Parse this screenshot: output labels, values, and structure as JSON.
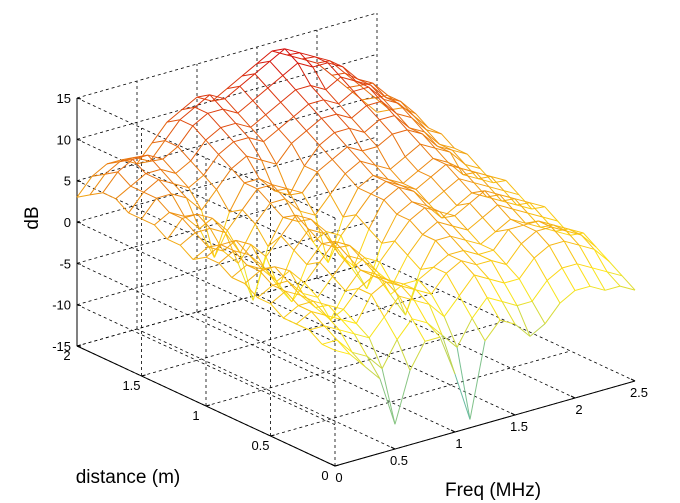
{
  "chart_data": {
    "type": "surface",
    "title": "",
    "xlabel": "Freq (MHz)",
    "ylabel": "distance (m)",
    "zlabel": "dB",
    "x_ticks": [
      "0",
      "0.5",
      "1",
      "1.5",
      "2",
      "2.5"
    ],
    "y_ticks": [
      "0",
      "0.5",
      "1",
      "1.5",
      "2"
    ],
    "z_ticks": [
      "-15",
      "-10",
      "-5",
      "0",
      "5",
      "10",
      "15"
    ],
    "xlim": [
      0,
      2.5
    ],
    "ylim": [
      0,
      2
    ],
    "zlim": [
      -15,
      15
    ],
    "grid": true,
    "colormap": "autumn-to-cool (red high, yellow mid, cyan low)",
    "x": [
      0,
      0.125,
      0.25,
      0.375,
      0.5,
      0.625,
      0.75,
      0.875,
      1.0,
      1.125,
      1.25,
      1.375,
      1.5,
      1.625,
      1.75,
      1.875,
      2.0,
      2.125,
      2.25,
      2.375,
      2.5
    ],
    "y": [
      0,
      0.1,
      0.2,
      0.3,
      0.4,
      0.5,
      0.6,
      0.7,
      0.8,
      0.9,
      1.0,
      1.1,
      1.2,
      1.3,
      1.4,
      1.5,
      1.6,
      1.7,
      1.8,
      1.9,
      2.0
    ],
    "z": [
      [
        -1,
        -2,
        -4,
        -6,
        -12,
        -6,
        -3,
        -3,
        -8,
        -14,
        -5,
        -3,
        -4,
        -6,
        -5,
        -3,
        -2,
        -2,
        -3,
        -3,
        -4
      ],
      [
        -1,
        -1,
        -3,
        -4,
        -6,
        -3,
        -1,
        -2,
        -4,
        -6,
        -3,
        -1,
        -2,
        -3,
        -3,
        -1,
        0,
        0,
        -1,
        -2,
        -3
      ],
      [
        0,
        0,
        -1,
        -2,
        -3,
        -1,
        1,
        0,
        -1,
        -3,
        -1,
        1,
        0,
        -1,
        -1,
        1,
        2,
        2,
        1,
        0,
        -2
      ],
      [
        0,
        1,
        0,
        -1,
        -2,
        1,
        2,
        1,
        0,
        -1,
        1,
        2,
        1,
        1,
        0,
        2,
        3,
        3,
        2,
        1,
        -1
      ],
      [
        0,
        1,
        1,
        0,
        -1,
        1,
        2,
        1,
        0,
        0,
        1,
        2,
        2,
        1,
        1,
        3,
        3,
        3,
        2,
        1,
        0
      ],
      [
        1,
        2,
        1,
        -1,
        -3,
        0,
        2,
        1,
        -2,
        -5,
        0,
        3,
        3,
        2,
        1,
        2,
        3,
        2,
        1,
        0,
        -1
      ],
      [
        1,
        2,
        2,
        0,
        -1,
        1,
        3,
        2,
        0,
        -2,
        1,
        3,
        4,
        3,
        2,
        3,
        4,
        3,
        2,
        1,
        0
      ],
      [
        2,
        3,
        3,
        2,
        0,
        2,
        4,
        3,
        1,
        0,
        2,
        4,
        5,
        4,
        3,
        4,
        5,
        4,
        3,
        2,
        1
      ],
      [
        2,
        3,
        2,
        0,
        -3,
        1,
        3,
        2,
        -1,
        -4,
        1,
        4,
        5,
        4,
        2,
        3,
        4,
        3,
        2,
        1,
        0
      ],
      [
        3,
        4,
        3,
        1,
        -2,
        2,
        4,
        3,
        0,
        -2,
        2,
        5,
        6,
        5,
        3,
        4,
        5,
        4,
        3,
        2,
        1
      ],
      [
        3,
        4,
        4,
        3,
        1,
        3,
        5,
        4,
        2,
        1,
        3,
        5,
        6,
        5,
        4,
        5,
        6,
        5,
        4,
        3,
        2
      ],
      [
        2,
        3,
        2,
        0,
        -5,
        1,
        4,
        3,
        0,
        -3,
        2,
        5,
        6,
        5,
        4,
        5,
        6,
        5,
        3,
        2,
        1
      ],
      [
        3,
        4,
        4,
        3,
        0,
        3,
        5,
        5,
        3,
        2,
        4,
        6,
        7,
        6,
        5,
        6,
        7,
        6,
        5,
        3,
        2
      ],
      [
        3,
        5,
        5,
        4,
        2,
        4,
        6,
        6,
        5,
        4,
        6,
        7,
        8,
        7,
        7,
        8,
        8,
        7,
        5,
        4,
        3
      ],
      [
        4,
        5,
        4,
        2,
        -2,
        3,
        6,
        6,
        4,
        3,
        6,
        8,
        9,
        9,
        8,
        9,
        9,
        7,
        6,
        4,
        3
      ],
      [
        4,
        6,
        6,
        5,
        3,
        5,
        7,
        8,
        7,
        6,
        8,
        9,
        10,
        10,
        9,
        10,
        10,
        8,
        7,
        5,
        4
      ],
      [
        4,
        6,
        7,
        6,
        5,
        6,
        8,
        9,
        9,
        8,
        9,
        10,
        11,
        11,
        10,
        11,
        11,
        9,
        8,
        6,
        4
      ],
      [
        5,
        6,
        7,
        7,
        6,
        7,
        9,
        10,
        10,
        9,
        10,
        11,
        12,
        12,
        11,
        12,
        11,
        10,
        8,
        7,
        5
      ],
      [
        5,
        7,
        8,
        8,
        7,
        8,
        10,
        11,
        11,
        10,
        11,
        12,
        13,
        14,
        13,
        13,
        12,
        10,
        9,
        7,
        5
      ],
      [
        4,
        6,
        7,
        7,
        6,
        8,
        10,
        11,
        12,
        11,
        12,
        13,
        14,
        15,
        14,
        13,
        12,
        10,
        8,
        6,
        4
      ],
      [
        3,
        5,
        6,
        6,
        5,
        7,
        9,
        10,
        11,
        10,
        11,
        12,
        13,
        14,
        13,
        12,
        11,
        9,
        7,
        5,
        3
      ]
    ]
  }
}
